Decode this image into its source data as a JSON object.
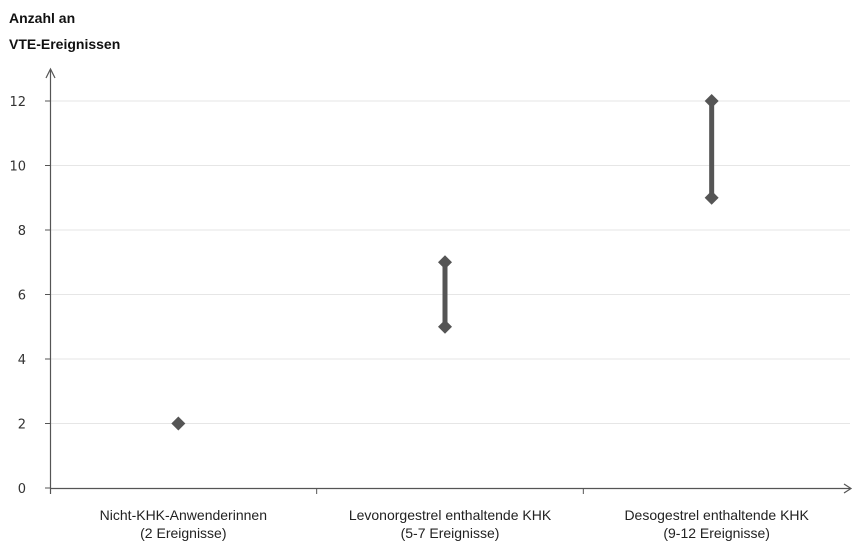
{
  "chart_data": {
    "type": "range",
    "ylabel": [
      "Anzahl an",
      "VTE-Ereignissen"
    ],
    "ylim": [
      0,
      12
    ],
    "yticks": [
      0,
      2,
      4,
      6,
      8,
      10,
      12
    ],
    "grid": true,
    "categories": [
      {
        "label": "Nicht-KHK-Anwenderinnen",
        "sublabel": "(2 Ereignisse)",
        "low": 2,
        "high": 2
      },
      {
        "label": "Levonorgestrel enthaltende KHK",
        "sublabel": "(5-7 Ereignisse)",
        "low": 5,
        "high": 7
      },
      {
        "label": "Desogestrel enthaltende KHK",
        "sublabel": "(9-12 Ereignisse)",
        "low": 9,
        "high": 12
      }
    ],
    "marker_color": "#555555",
    "axis_color": "#555555",
    "grid_color": "#e6e6e6"
  }
}
